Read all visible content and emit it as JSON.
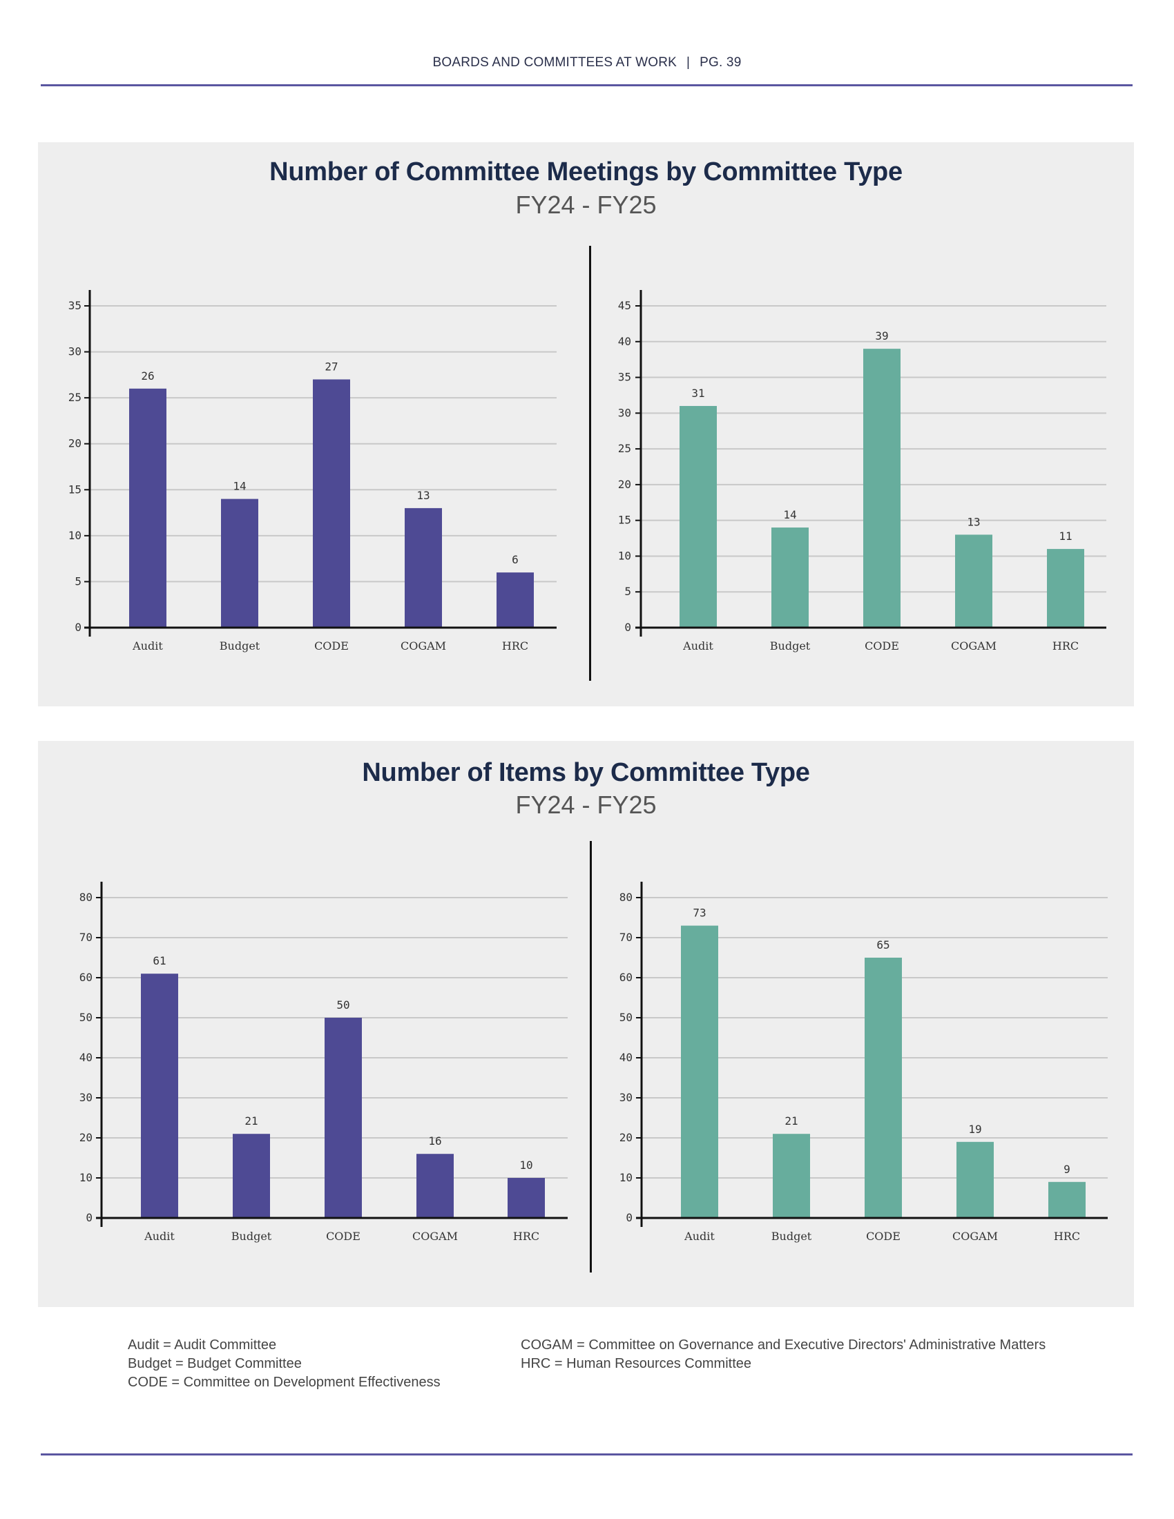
{
  "header": {
    "section": "BOARDS AND COMMITTEES AT WORK",
    "separator": "|",
    "page": "PG. 39"
  },
  "colors": {
    "fy24": "#4e4a94",
    "fy25": "#67ad9d",
    "rule": "#5a56a0",
    "title": "#1c2b4a",
    "panel": "#eeeeee"
  },
  "meetings": {
    "title": "Number of Committee Meetings by Committee Type",
    "subtitle": "FY24 - FY25"
  },
  "items": {
    "title": "Number of Items by Committee Type",
    "subtitle": "FY24 - FY25"
  },
  "chart_data": [
    {
      "id": "meetings-fy24",
      "type": "bar",
      "title": "Number of Committee Meetings by Committee Type",
      "subtitle": "FY24 - FY25",
      "categories": [
        "Audit",
        "Budget",
        "CODE",
        "COGAM",
        "HRC"
      ],
      "values": [
        26,
        14,
        27,
        13,
        6
      ],
      "data_labels": [
        "26",
        "14",
        "27",
        "13",
        "6"
      ],
      "ylim": [
        0,
        35
      ],
      "yticks": [
        0,
        5,
        10,
        15,
        20,
        25,
        30,
        35
      ],
      "grid": true,
      "color": "#4e4a94"
    },
    {
      "id": "meetings-fy25",
      "type": "bar",
      "title": "Number of Committee Meetings by Committee Type",
      "subtitle": "FY24 - FY25",
      "categories": [
        "Audit",
        "Budget",
        "CODE",
        "COGAM",
        "HRC"
      ],
      "values": [
        31,
        14,
        39,
        13,
        11
      ],
      "data_labels": [
        "31",
        "14",
        "39",
        "13",
        "11"
      ],
      "ylim": [
        0,
        45
      ],
      "yticks": [
        0,
        5,
        10,
        15,
        20,
        25,
        30,
        35,
        40,
        45
      ],
      "grid": true,
      "color": "#67ad9d"
    },
    {
      "id": "items-fy24",
      "type": "bar",
      "title": "Number of Items by Committee Type",
      "subtitle": "FY24 - FY25",
      "categories": [
        "Audit",
        "Budget",
        "CODE",
        "COGAM",
        "HRC"
      ],
      "values": [
        61,
        21,
        50,
        16,
        10
      ],
      "data_labels": [
        "61",
        "21",
        "50",
        "16",
        "10"
      ],
      "ylim": [
        0,
        80
      ],
      "yticks": [
        0,
        10,
        20,
        30,
        40,
        50,
        60,
        70,
        80
      ],
      "grid": true,
      "color": "#4e4a94"
    },
    {
      "id": "items-fy25",
      "type": "bar",
      "title": "Number of Items by Committee Type",
      "subtitle": "FY24 - FY25",
      "categories": [
        "Audit",
        "Budget",
        "CODE",
        "COGAM",
        "HRC"
      ],
      "values": [
        73,
        21,
        65,
        19,
        9
      ],
      "data_labels": [
        "73",
        "21",
        "65",
        "19",
        "9"
      ],
      "ylim": [
        0,
        80
      ],
      "yticks": [
        0,
        10,
        20,
        30,
        40,
        50,
        60,
        70,
        80
      ],
      "grid": true,
      "color": "#67ad9d"
    }
  ],
  "legend": {
    "left": [
      "Audit = Audit Committee",
      "Budget = Budget Committee",
      "CODE = Committee on Development Effectiveness"
    ],
    "right": [
      "COGAM = Committee on Governance and Executive Directors' Administrative Matters",
      "HRC = Human Resources Committee"
    ]
  }
}
